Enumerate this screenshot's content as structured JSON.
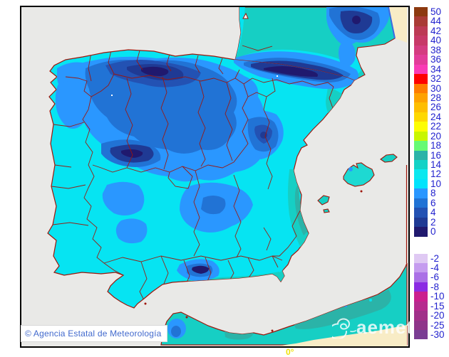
{
  "map": {
    "copyright_text": "© Agencia Estatal de Meteorología",
    "watermark_text": "aemet",
    "meridian_label": "0°",
    "colors": {
      "sea": "#E9E9E7",
      "coastline": "#9E150A",
      "land_cyan": "#06E4F2",
      "land_teal": "#16CFC4",
      "land_teal_dark": "#2BB3A8",
      "land_blue_8": "#2A97FF",
      "land_blue_6": "#2173D5",
      "land_blue_4": "#2352B3",
      "land_blue_2": "#1F3A94",
      "land_navy_0": "#20196E",
      "out_of_domain": "#F8ECC6",
      "domain_edge": "#3E6BE0",
      "island_fill": "#1ED9D2"
    }
  },
  "legend": {
    "label_color": "#2222CE",
    "upper": [
      {
        "label": "50",
        "color": "#8C390F"
      },
      {
        "label": "44",
        "color": "#A93B35"
      },
      {
        "label": "42",
        "color": "#BC3A54"
      },
      {
        "label": "40",
        "color": "#C73967"
      },
      {
        "label": "38",
        "color": "#D43C80"
      },
      {
        "label": "36",
        "color": "#E23C99"
      },
      {
        "label": "34",
        "color": "#F93BB5"
      },
      {
        "label": "32",
        "color": "#FD0100"
      },
      {
        "label": "30",
        "color": "#FE7C00"
      },
      {
        "label": "28",
        "color": "#FEA200"
      },
      {
        "label": "26",
        "color": "#FEBE00"
      },
      {
        "label": "24",
        "color": "#FED800"
      },
      {
        "label": "22",
        "color": "#FDFD02"
      },
      {
        "label": "20",
        "color": "#C9F601"
      },
      {
        "label": "18",
        "color": "#67FA73"
      },
      {
        "label": "16",
        "color": "#2BB3A8"
      },
      {
        "label": "14",
        "color": "#13D2C6"
      },
      {
        "label": "12",
        "color": "#0BE8EF"
      },
      {
        "label": "10",
        "color": "#01E3FC"
      },
      {
        "label": "8",
        "color": "#2A97FF"
      },
      {
        "label": "6",
        "color": "#2173D5"
      },
      {
        "label": "4",
        "color": "#2352B3"
      },
      {
        "label": "2",
        "color": "#1F3A94"
      },
      {
        "label": "0",
        "color": "#20196E"
      }
    ],
    "lower": [
      {
        "label": "-2",
        "color": "#DFC9F3"
      },
      {
        "label": "-4",
        "color": "#C59CEF"
      },
      {
        "label": "-6",
        "color": "#AA70E6"
      },
      {
        "label": "-8",
        "color": "#8B2BE3"
      },
      {
        "label": "-10",
        "color": "#CB1F8E"
      },
      {
        "label": "-15",
        "color": "#B62A8E"
      },
      {
        "label": "-20",
        "color": "#A13089"
      },
      {
        "label": "-25",
        "color": "#8F3589"
      },
      {
        "label": "-30",
        "color": "#7A3D93"
      }
    ]
  }
}
